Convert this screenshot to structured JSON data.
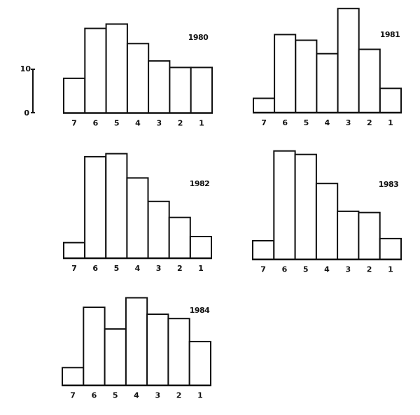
{
  "figure": {
    "scale_bar": {
      "top_label": "10",
      "bottom_label": "0",
      "top_value": 10,
      "bottom_value": 0
    }
  },
  "chart_data": [
    {
      "type": "bar",
      "title": "1980",
      "categories": [
        "7",
        "6",
        "5",
        "4",
        "3",
        "2",
        "1"
      ],
      "values": [
        8,
        19.5,
        20.5,
        16,
        12,
        10.5,
        10.5
      ],
      "xlabel": "",
      "ylabel": "",
      "ylim": [
        0,
        25
      ],
      "grid": false,
      "legend": null
    },
    {
      "type": "bar",
      "title": "1981",
      "categories": [
        "7",
        "6",
        "5",
        "4",
        "3",
        "2",
        "1"
      ],
      "values": [
        3.3,
        18,
        16.7,
        13.6,
        24,
        14.6,
        5.6
      ],
      "xlabel": "",
      "ylabel": "",
      "ylim": [
        0,
        25
      ],
      "grid": false,
      "legend": null
    },
    {
      "type": "bar",
      "title": "1982",
      "categories": [
        "7",
        "6",
        "5",
        "4",
        "3",
        "2",
        "1"
      ],
      "values": [
        3.6,
        23.4,
        24.1,
        18.5,
        13.1,
        9.4,
        5
      ],
      "xlabel": "",
      "ylabel": "",
      "ylim": [
        0,
        25
      ],
      "grid": false,
      "legend": null
    },
    {
      "type": "bar",
      "title": "1983",
      "categories": [
        "7",
        "6",
        "5",
        "4",
        "3",
        "2",
        "1"
      ],
      "values": [
        4.3,
        25,
        24.2,
        17.5,
        11.1,
        10.8,
        4.8
      ],
      "xlabel": "",
      "ylabel": "",
      "ylim": [
        0,
        25
      ],
      "grid": false,
      "legend": null
    },
    {
      "type": "bar",
      "title": "1984",
      "categories": [
        "7",
        "6",
        "5",
        "4",
        "3",
        "2",
        "1"
      ],
      "values": [
        4.1,
        18,
        13,
        20.2,
        16.4,
        15.4,
        10.1
      ],
      "xlabel": "",
      "ylabel": "",
      "ylim": [
        0,
        25
      ],
      "grid": false,
      "legend": null
    }
  ]
}
